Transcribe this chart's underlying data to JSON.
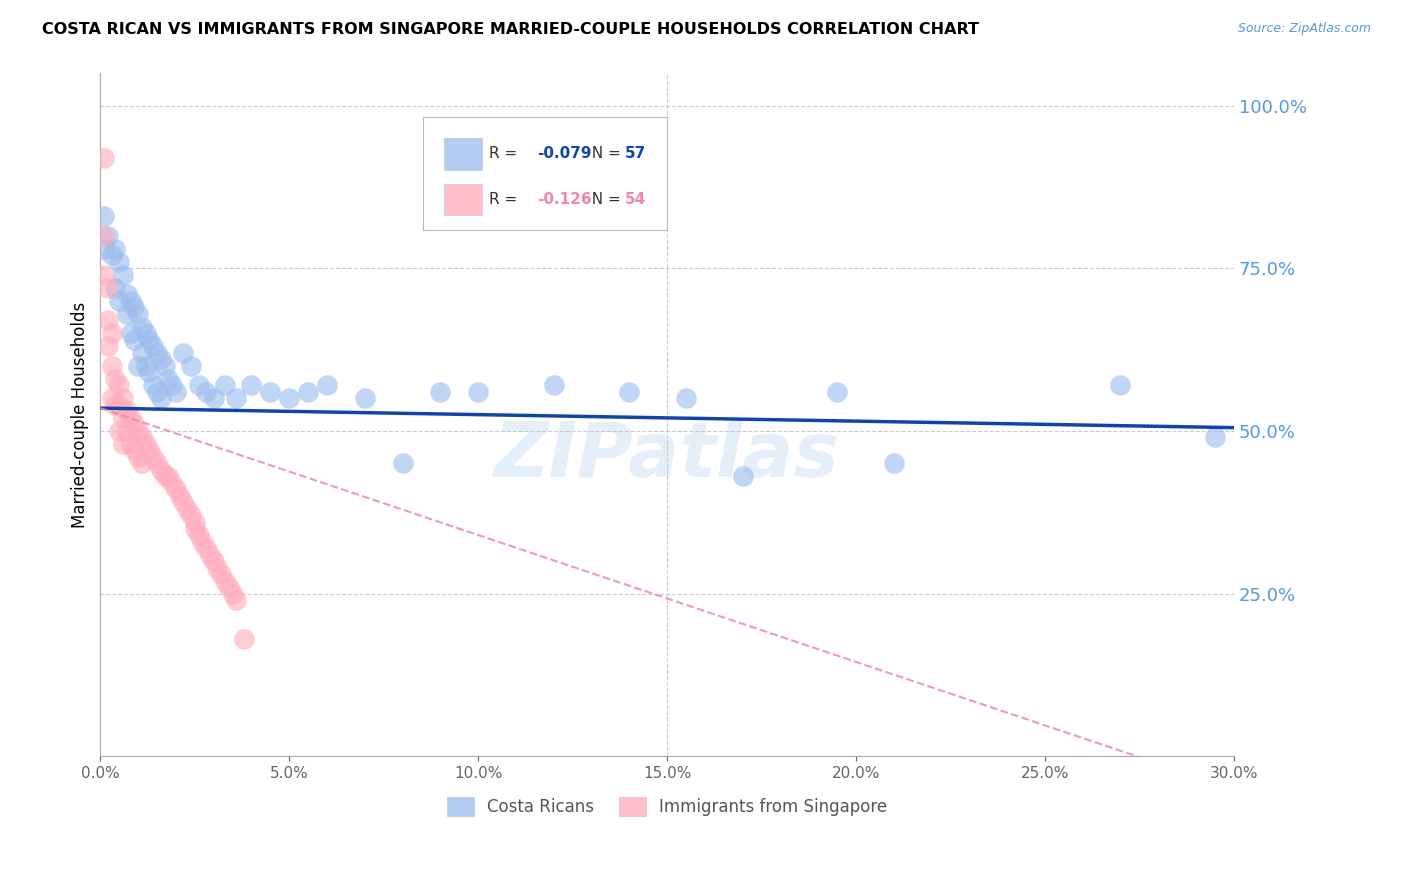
{
  "title": "COSTA RICAN VS IMMIGRANTS FROM SINGAPORE MARRIED-COUPLE HOUSEHOLDS CORRELATION CHART",
  "source": "Source: ZipAtlas.com",
  "ylabel": "Married-couple Households",
  "legend_labels": [
    "Costa Ricans",
    "Immigrants from Singapore"
  ],
  "legend_r": [
    -0.079,
    -0.126
  ],
  "legend_n": [
    57,
    54
  ],
  "blue_color": "#99BBEE",
  "pink_color": "#FFAABB",
  "blue_line_color": "#1144AA",
  "pink_line_color": "#EE88AA",
  "right_axis_color": "#5599DD",
  "watermark": "ZIPatlas",
  "xlim": [
    0.0,
    0.3
  ],
  "ylim": [
    0.0,
    1.05
  ],
  "yticks_right": [
    0.25,
    0.5,
    0.75,
    1.0
  ],
  "xticks": [
    0.0,
    0.05,
    0.1,
    0.15,
    0.2,
    0.25,
    0.3
  ],
  "blue_x": [
    0.001,
    0.001,
    0.002,
    0.003,
    0.004,
    0.004,
    0.005,
    0.005,
    0.006,
    0.007,
    0.007,
    0.008,
    0.008,
    0.009,
    0.009,
    0.01,
    0.01,
    0.011,
    0.011,
    0.012,
    0.012,
    0.013,
    0.013,
    0.014,
    0.014,
    0.015,
    0.015,
    0.016,
    0.016,
    0.017,
    0.018,
    0.019,
    0.02,
    0.022,
    0.024,
    0.026,
    0.028,
    0.03,
    0.033,
    0.036,
    0.04,
    0.045,
    0.05,
    0.055,
    0.06,
    0.07,
    0.08,
    0.09,
    0.1,
    0.12,
    0.14,
    0.155,
    0.17,
    0.195,
    0.21,
    0.27,
    0.295
  ],
  "blue_y": [
    0.83,
    0.78,
    0.8,
    0.77,
    0.78,
    0.72,
    0.76,
    0.7,
    0.74,
    0.71,
    0.68,
    0.7,
    0.65,
    0.69,
    0.64,
    0.68,
    0.6,
    0.66,
    0.62,
    0.65,
    0.6,
    0.64,
    0.59,
    0.63,
    0.57,
    0.62,
    0.56,
    0.61,
    0.55,
    0.6,
    0.58,
    0.57,
    0.56,
    0.62,
    0.6,
    0.57,
    0.56,
    0.55,
    0.57,
    0.55,
    0.57,
    0.56,
    0.55,
    0.56,
    0.57,
    0.55,
    0.45,
    0.56,
    0.56,
    0.57,
    0.56,
    0.55,
    0.43,
    0.56,
    0.45,
    0.57,
    0.49
  ],
  "pink_x": [
    0.001,
    0.001,
    0.001,
    0.002,
    0.002,
    0.002,
    0.003,
    0.003,
    0.003,
    0.004,
    0.004,
    0.005,
    0.005,
    0.005,
    0.006,
    0.006,
    0.006,
    0.007,
    0.007,
    0.008,
    0.008,
    0.009,
    0.009,
    0.01,
    0.01,
    0.011,
    0.011,
    0.012,
    0.013,
    0.014,
    0.015,
    0.016,
    0.017,
    0.018,
    0.019,
    0.02,
    0.021,
    0.022,
    0.023,
    0.024,
    0.025,
    0.025,
    0.026,
    0.027,
    0.028,
    0.029,
    0.03,
    0.031,
    0.032,
    0.033,
    0.034,
    0.035,
    0.036,
    0.038
  ],
  "pink_y": [
    0.92,
    0.8,
    0.74,
    0.72,
    0.67,
    0.63,
    0.65,
    0.6,
    0.55,
    0.58,
    0.54,
    0.57,
    0.54,
    0.5,
    0.55,
    0.52,
    0.48,
    0.53,
    0.5,
    0.52,
    0.48,
    0.51,
    0.47,
    0.5,
    0.46,
    0.49,
    0.45,
    0.48,
    0.47,
    0.46,
    0.45,
    0.44,
    0.43,
    0.43,
    0.42,
    0.41,
    0.4,
    0.39,
    0.38,
    0.37,
    0.36,
    0.35,
    0.34,
    0.33,
    0.32,
    0.31,
    0.3,
    0.29,
    0.28,
    0.27,
    0.26,
    0.25,
    0.24,
    0.18
  ],
  "grid_color": "#CCCCCC",
  "spine_color": "#AAAAAA"
}
